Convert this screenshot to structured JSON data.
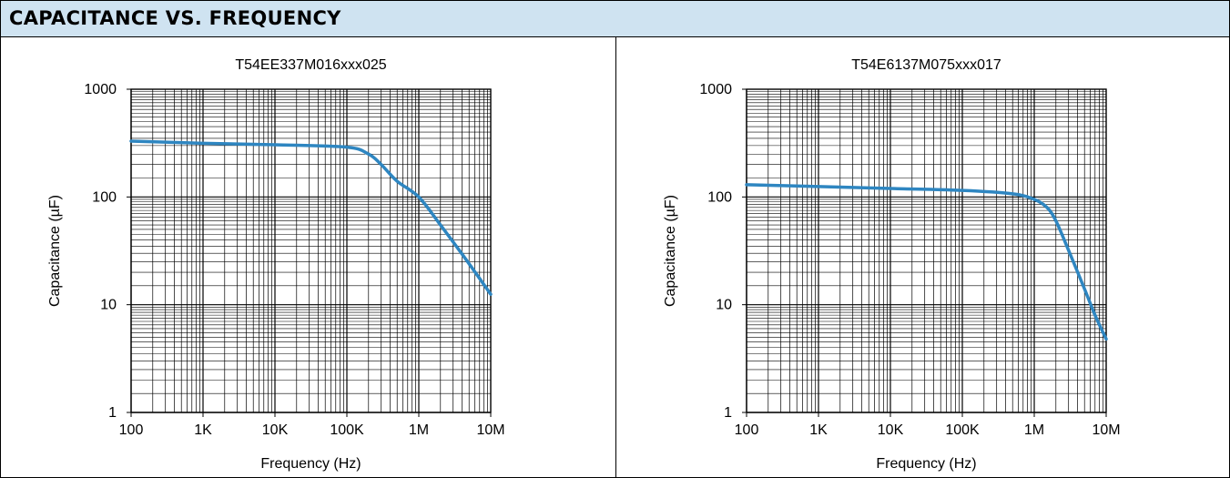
{
  "header": {
    "title": "CAPACITANCE VS. FREQUENCY",
    "background_color": "#cfe3f1"
  },
  "chart_data": [
    {
      "type": "line",
      "title": "T54EE337M016xxx025",
      "xlabel": "Frequency (Hz)",
      "ylabel": "Capacitance (µF)",
      "x_scale": "log",
      "y_scale": "log",
      "xlim": [
        100,
        10000000
      ],
      "ylim": [
        1,
        1000
      ],
      "x_ticks": [
        100,
        1000,
        10000,
        100000,
        1000000,
        10000000
      ],
      "x_tick_labels": [
        "100",
        "1K",
        "10K",
        "100K",
        "1M",
        "10M"
      ],
      "y_ticks": [
        1,
        10,
        100,
        1000
      ],
      "y_tick_labels": [
        "1",
        "10",
        "100",
        "1000"
      ],
      "grid": true,
      "legend": "none",
      "line_color": "#2e86c1",
      "series": [
        {
          "x": [
            100,
            1000,
            10000,
            100000,
            200000,
            300000,
            500000,
            1000000,
            2000000,
            5000000,
            10000000
          ],
          "y": [
            330,
            315,
            305,
            290,
            250,
            200,
            140,
            100,
            55,
            24,
            12.5
          ]
        }
      ]
    },
    {
      "type": "line",
      "title": "T54E6137M075xxx017",
      "xlabel": "Frequency (Hz)",
      "ylabel": "Capacitance (µF)",
      "x_scale": "log",
      "y_scale": "log",
      "xlim": [
        100,
        10000000
      ],
      "ylim": [
        1,
        1000
      ],
      "x_ticks": [
        100,
        1000,
        10000,
        100000,
        1000000,
        10000000
      ],
      "x_tick_labels": [
        "100",
        "1K",
        "10K",
        "100K",
        "1M",
        "10M"
      ],
      "y_ticks": [
        1,
        10,
        100,
        1000
      ],
      "y_tick_labels": [
        "1",
        "10",
        "100",
        "1000"
      ],
      "grid": true,
      "legend": "none",
      "line_color": "#2e86c1",
      "series": [
        {
          "x": [
            100,
            1000,
            10000,
            100000,
            500000,
            1000000,
            1500000,
            2000000,
            3000000,
            5000000,
            7000000,
            10000000
          ],
          "y": [
            130,
            125,
            120,
            115,
            107,
            95,
            80,
            60,
            32,
            14,
            8,
            4.8
          ]
        }
      ]
    }
  ]
}
